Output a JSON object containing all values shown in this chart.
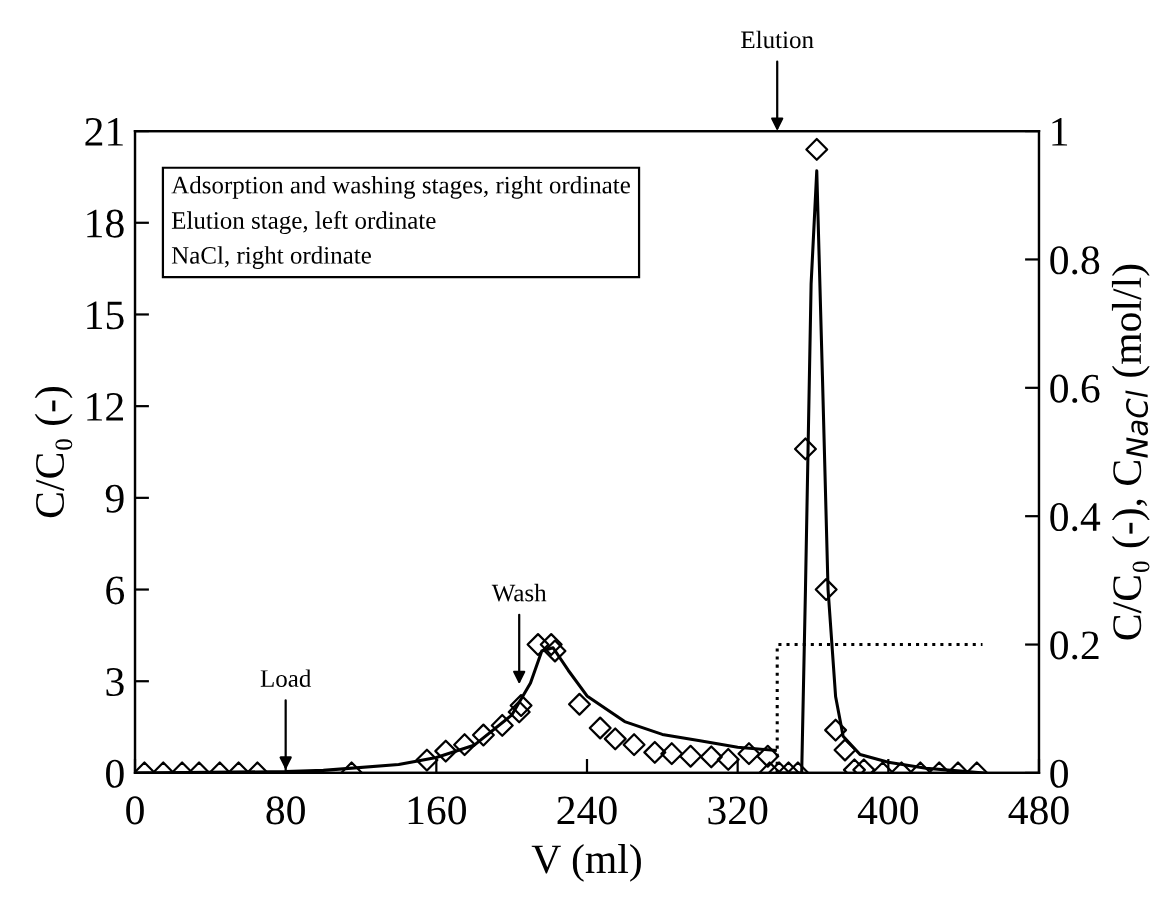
{
  "chart_data": {
    "type": "scatter",
    "xlabel": "V (ml)",
    "ylabel": "C/C₀ (-)",
    "y2label": "C/C₀ (-), C$_{NaCl}$ (mol/l)",
    "xlim": [
      0,
      480
    ],
    "xticks": [
      0,
      80,
      160,
      240,
      320,
      400,
      480
    ],
    "ylim": [
      0,
      21
    ],
    "yticks": [
      0,
      3,
      6,
      9,
      12,
      15,
      18,
      21
    ],
    "y2lim": [
      0,
      1
    ],
    "y2ticks": [
      0,
      0.2,
      0.4,
      0.6,
      0.8,
      1
    ],
    "grid": false,
    "legend": false,
    "annotations": [
      "Adsorption and washing stages, right ordinate",
      "Elution stage, left ordinate",
      "NaCl, right ordinate",
      {
        "text": "Load",
        "x": 80,
        "y": 0.1
      },
      {
        "text": "Wash",
        "x": 204,
        "y": 2.9
      },
      "Elution"
    ],
    "series": [
      {
        "axis": "y2",
        "color": "#000000",
        "marker": "diamond",
        "x": [
          5,
          15,
          25,
          34,
          45,
          55,
          65,
          115,
          155,
          165,
          175,
          185,
          195,
          204,
          205,
          214,
          221,
          223,
          236,
          247,
          255,
          265,
          276,
          285,
          295,
          306,
          315,
          326,
          336
        ],
        "values": [
          0,
          0,
          0,
          0,
          0,
          0,
          0,
          0,
          0.02,
          0.034,
          0.044,
          0.059,
          0.074,
          0.095,
          0.105,
          0.2,
          0.2,
          0.19,
          0.107,
          0.07,
          0.053,
          0.044,
          0.032,
          0.03,
          0.026,
          0.025,
          0.021,
          0.03,
          0.026
        ]
      },
      {
        "axis": "y",
        "color": "#000000",
        "marker": "diamond",
        "x": [
          337,
          342,
          347,
          352,
          356,
          362,
          367,
          372,
          377,
          382,
          387,
          397,
          407,
          417,
          427,
          437,
          447
        ],
        "values": [
          0,
          0,
          0,
          0,
          10.6,
          20.4,
          6.0,
          1.4,
          0.75,
          0.1,
          0.1,
          0,
          0,
          0,
          0,
          0,
          0
        ]
      },
      {
        "type": "line",
        "axis": "y2",
        "color": "#000000",
        "marker": "none",
        "line_style": "solid",
        "x": [
          0,
          80,
          100,
          140,
          160,
          180,
          200,
          210,
          216,
          222,
          230,
          240,
          260,
          280,
          300,
          320,
          340
        ],
        "values": [
          0,
          0.002,
          0.004,
          0.013,
          0.024,
          0.043,
          0.09,
          0.14,
          0.19,
          0.195,
          0.16,
          0.12,
          0.08,
          0.06,
          0.05,
          0.04,
          0.035
        ]
      },
      {
        "type": "line",
        "axis": "y",
        "color": "#000000",
        "marker": "none",
        "line_style": "solid",
        "x": [
          341,
          354,
          356,
          359,
          362,
          365,
          368,
          372,
          376,
          385,
          400,
          420,
          440,
          450
        ],
        "values": [
          0,
          0,
          6,
          16,
          19.7,
          13,
          6,
          2.5,
          1.2,
          0.6,
          0.35,
          0.15,
          0.05,
          0
        ]
      },
      {
        "type": "line",
        "axis": "y2",
        "color": "#000000",
        "marker": "none",
        "line_style": "dotted",
        "x": [
          341,
          341,
          450
        ],
        "values": [
          0,
          0.2,
          0.2
        ]
      }
    ]
  }
}
